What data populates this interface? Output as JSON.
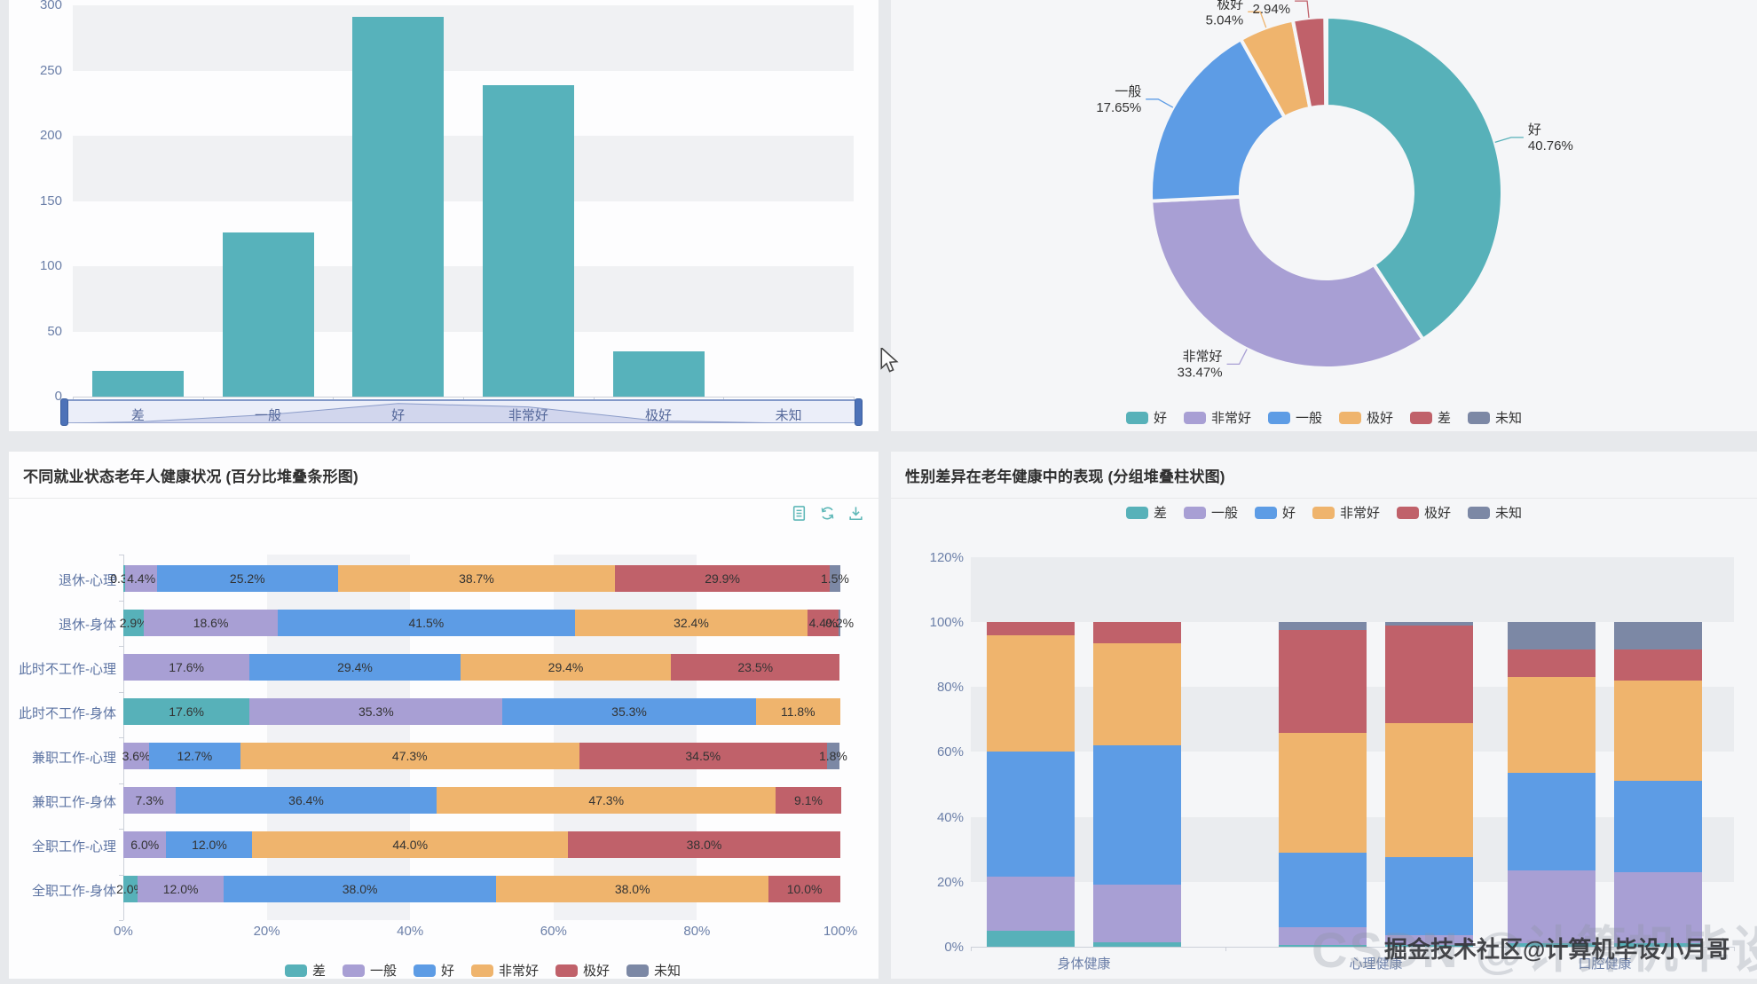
{
  "series_colors": [
    "#57b1b9",
    "#a89fd4",
    "#5d9ce5",
    "#efb46d",
    "#c0616a",
    "#7c88a5"
  ],
  "axis_text_color": "#6b7fa8",
  "panel_colors": {
    "left_panels": "#fdfdfe",
    "right_panels": "#f5f6f8",
    "page_background": "#e7e9ec"
  },
  "chart_data": [
    {
      "type": "bar",
      "title": "",
      "categories": [
        "差",
        "一般",
        "好",
        "非常好",
        "极好",
        "未知"
      ],
      "values": [
        20,
        126,
        291,
        239,
        35,
        0
      ],
      "bar_color": "#57b2bb",
      "ylim": [
        0,
        300
      ],
      "yticks": [
        "0",
        "50",
        "100",
        "150",
        "200",
        "250",
        "300"
      ],
      "grid": "horizontal split-area bands",
      "datazoom": {
        "labels": [
          "差",
          "一般",
          "好",
          "非常好",
          "极好",
          "未知"
        ]
      }
    },
    {
      "type": "pie",
      "subtype": "donut",
      "title": "",
      "segments": [
        {
          "name": "好",
          "pct": 40.76
        },
        {
          "name": "非常好",
          "pct": 33.47
        },
        {
          "name": "一般",
          "pct": 17.65
        },
        {
          "name": "极好",
          "pct": 5.04
        },
        {
          "name": "差",
          "pct": 2.94
        },
        {
          "name": "未知",
          "pct": 0
        }
      ],
      "legend": [
        "好",
        "非常好",
        "一般",
        "极好",
        "差",
        "未知"
      ],
      "legend_position": "bottom"
    },
    {
      "type": "bar",
      "subtype": "horizontal-percent-stacked",
      "title": "不同就业状态老年人健康状况 (百分比堆叠条形图)",
      "series": [
        "差",
        "一般",
        "好",
        "非常好",
        "极好",
        "未知"
      ],
      "categories": [
        "退休-心理",
        "退休-身体",
        "此时不工作-心理",
        "此时不工作-身体",
        "兼职工作-心理",
        "兼职工作-身体",
        "全职工作-心理",
        "全职工作-身体"
      ],
      "rows": [
        [
          0.3,
          4.4,
          25.2,
          38.7,
          29.9,
          1.5
        ],
        [
          2.9,
          18.6,
          41.5,
          32.4,
          4.4,
          0.2
        ],
        [
          0,
          17.6,
          29.4,
          29.4,
          23.5,
          0
        ],
        [
          17.6,
          35.3,
          35.3,
          11.8,
          0,
          0
        ],
        [
          0,
          3.6,
          12.7,
          47.3,
          34.5,
          1.8
        ],
        [
          0,
          7.3,
          36.4,
          47.3,
          9.1,
          0
        ],
        [
          0,
          6.0,
          12.0,
          44.0,
          38.0,
          0
        ],
        [
          2.0,
          12.0,
          38.0,
          38.0,
          10.0,
          0
        ]
      ],
      "row_labels": [
        [
          "0.3%",
          "4.4%",
          "25.2%",
          "38.7%",
          "29.9%",
          "1.5%"
        ],
        [
          "2.9%",
          "18.6%",
          "41.5%",
          "32.4%",
          "4.4%",
          "0.2%"
        ],
        [
          "",
          "17.6%",
          "29.4%",
          "29.4%",
          "23.5%",
          ""
        ],
        [
          "17.6%",
          "35.3%",
          "35.3%",
          "11.8%",
          "",
          ""
        ],
        [
          "",
          "3.6%",
          "12.7%",
          "47.3%",
          "34.5%",
          "1.8%"
        ],
        [
          "",
          "7.3%",
          "36.4%",
          "47.3%",
          "9.1%",
          ""
        ],
        [
          "",
          "6.0%",
          "12.0%",
          "44.0%",
          "38.0%",
          ""
        ],
        [
          "2.0%",
          "12.0%",
          "38.0%",
          "38.0%",
          "10.0%",
          ""
        ]
      ],
      "xticks": [
        "0%",
        "20%",
        "40%",
        "60%",
        "80%",
        "100%"
      ],
      "legend": [
        "差",
        "一般",
        "好",
        "非常好",
        "极好",
        "未知"
      ],
      "legend_position": "bottom",
      "toolbar_icons": [
        "data-view",
        "restore",
        "save-as-image"
      ]
    },
    {
      "type": "bar",
      "subtype": "vertical-grouped-stacked",
      "title": "性别差异在老年健康中的表现 (分组堆叠柱状图)",
      "series": [
        "差",
        "一般",
        "好",
        "非常好",
        "极好",
        "未知"
      ],
      "categories": [
        "身体健康",
        "心理健康",
        "口腔健康"
      ],
      "groups": [
        [
          [
            5,
            16.5,
            38.5,
            36,
            4,
            0
          ],
          [
            1.5,
            17.5,
            43,
            31.5,
            6.5,
            0
          ]
        ],
        [
          [
            0.5,
            5.5,
            23,
            37,
            31.5,
            2.5
          ],
          [
            0.5,
            3,
            24,
            41.5,
            30,
            1
          ]
        ],
        [
          [
            1,
            22.5,
            30,
            29.5,
            8.5,
            8.5
          ],
          [
            1,
            22,
            28,
            31,
            9.5,
            8.5
          ]
        ]
      ],
      "yticks": [
        "0%",
        "20%",
        "40%",
        "60%",
        "80%",
        "100%",
        "120%"
      ],
      "ylim": [
        0,
        120
      ],
      "legend": [
        "差",
        "一般",
        "好",
        "非常好",
        "极好",
        "未知"
      ],
      "legend_position": "top"
    }
  ],
  "watermark": {
    "main": "掘金技术社区@计算机毕设小月哥",
    "ghost": "CSDN @计算机毕设小月哥"
  }
}
